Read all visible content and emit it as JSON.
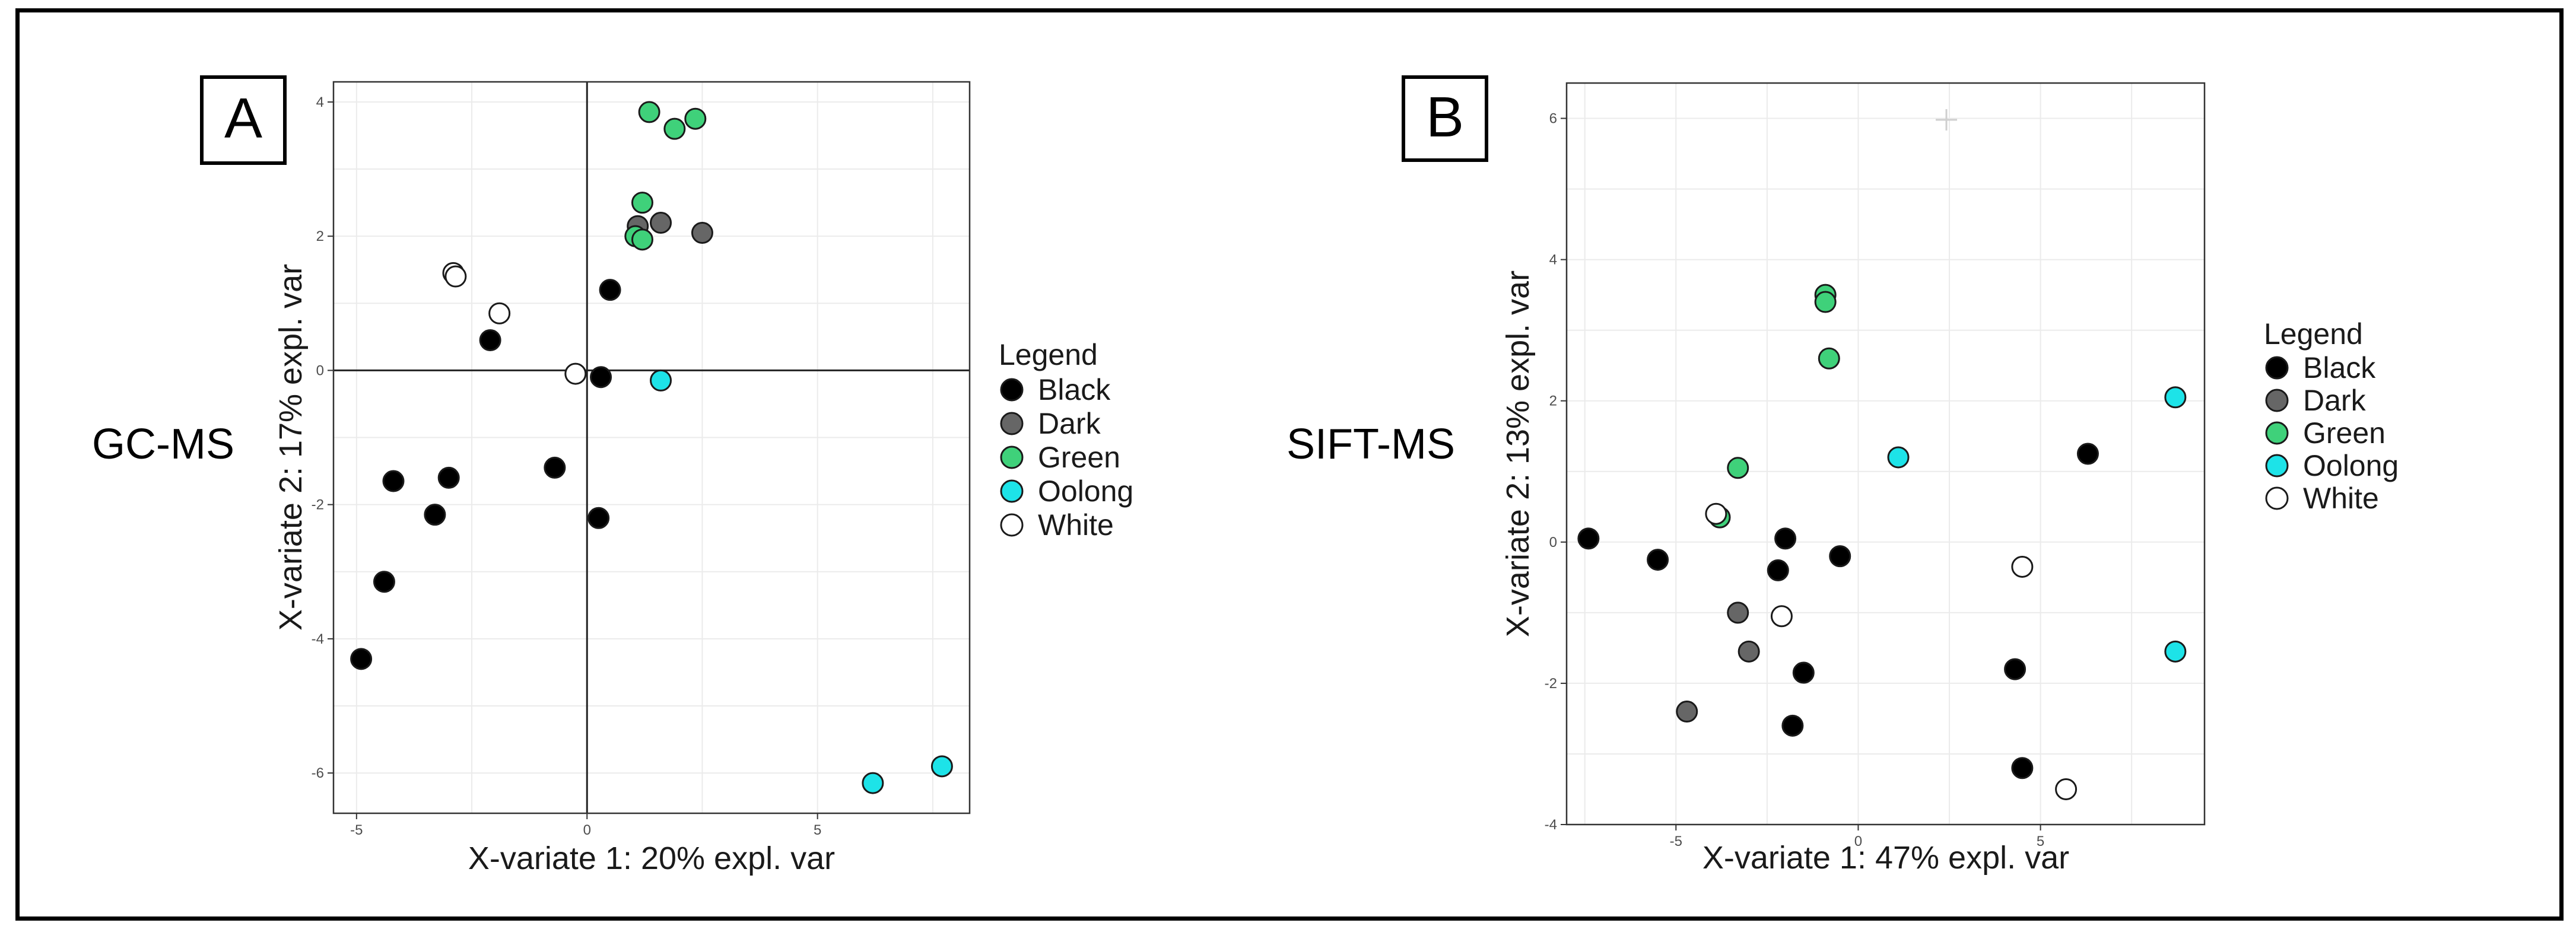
{
  "colors": {
    "Black": "#000000",
    "Dark": "#666666",
    "Green": "#3fd17a",
    "Oolong": "#1de3e8",
    "White": "#ffffff"
  },
  "chart_data": [
    {
      "type": "scatter",
      "panel_letter": "A",
      "method_label": "GC-MS",
      "xlabel": "X-variate 1: 20% expl. var",
      "ylabel": "X-variate 2: 17% expl. var",
      "xlim": [
        -5.5,
        8.3
      ],
      "ylim": [
        -6.6,
        4.3
      ],
      "xticks": [
        -5,
        0,
        5
      ],
      "xtick_labels": [
        "-5",
        "0",
        "5"
      ],
      "yticks": [
        -6,
        -4,
        -2,
        0,
        2,
        4
      ],
      "ytick_labels": [
        "-6",
        "-4",
        "-2",
        "0",
        "2",
        "4"
      ],
      "zero_lines": true,
      "legend": {
        "title": "Legend",
        "entries": [
          "Black",
          "Dark",
          "Green",
          "Oolong",
          "White"
        ]
      },
      "points": [
        {
          "group": "Black",
          "x": -4.9,
          "y": -4.3
        },
        {
          "group": "Black",
          "x": -4.4,
          "y": -3.15
        },
        {
          "group": "Black",
          "x": -4.2,
          "y": -1.65
        },
        {
          "group": "Black",
          "x": -3.3,
          "y": -2.15
        },
        {
          "group": "Black",
          "x": -3.0,
          "y": -1.6
        },
        {
          "group": "Black",
          "x": -2.1,
          "y": 0.45
        },
        {
          "group": "Black",
          "x": -0.7,
          "y": -1.45
        },
        {
          "group": "Black",
          "x": 0.3,
          "y": -0.1
        },
        {
          "group": "Black",
          "x": 0.5,
          "y": 1.2
        },
        {
          "group": "Black",
          "x": 0.25,
          "y": -2.2
        },
        {
          "group": "Dark",
          "x": 1.1,
          "y": 2.15
        },
        {
          "group": "Dark",
          "x": 1.6,
          "y": 2.2
        },
        {
          "group": "Dark",
          "x": 2.5,
          "y": 2.05
        },
        {
          "group": "Green",
          "x": 1.05,
          "y": 2.0
        },
        {
          "group": "Green",
          "x": 1.2,
          "y": 1.95
        },
        {
          "group": "Green",
          "x": 1.2,
          "y": 2.5
        },
        {
          "group": "Green",
          "x": 1.35,
          "y": 3.85
        },
        {
          "group": "Green",
          "x": 1.9,
          "y": 3.6
        },
        {
          "group": "Green",
          "x": 2.35,
          "y": 3.75
        },
        {
          "group": "Oolong",
          "x": 1.6,
          "y": -0.15
        },
        {
          "group": "Oolong",
          "x": 6.2,
          "y": -6.15
        },
        {
          "group": "Oolong",
          "x": 7.7,
          "y": -5.9
        },
        {
          "group": "White",
          "x": -2.9,
          "y": 1.45
        },
        {
          "group": "White",
          "x": -2.85,
          "y": 1.4
        },
        {
          "group": "White",
          "x": -1.9,
          "y": 0.85
        },
        {
          "group": "White",
          "x": -0.25,
          "y": -0.05
        }
      ]
    },
    {
      "type": "scatter",
      "panel_letter": "B",
      "method_label": "SIFT-MS",
      "xlabel": "X-variate 1: 47% expl. var",
      "ylabel": "X-variate 2: 13% expl. var",
      "xlim": [
        -8.0,
        9.5
      ],
      "ylim": [
        -4.0,
        6.5
      ],
      "xticks": [
        -5,
        0,
        5
      ],
      "xtick_labels": [
        "-5",
        "0",
        "5"
      ],
      "yticks": [
        -4,
        -2,
        0,
        2,
        4,
        6
      ],
      "ytick_labels": [
        "-4",
        "-2",
        "0",
        "2",
        "4",
        "6"
      ],
      "zero_lines": false,
      "legend": {
        "title": "Legend",
        "entries": [
          "Black",
          "Dark",
          "Green",
          "Oolong",
          "White"
        ]
      },
      "points": [
        {
          "group": "Black",
          "x": -7.4,
          "y": 0.05
        },
        {
          "group": "Black",
          "x": -5.5,
          "y": -0.25
        },
        {
          "group": "Black",
          "x": -2.0,
          "y": 0.05
        },
        {
          "group": "Black",
          "x": -2.2,
          "y": -0.4
        },
        {
          "group": "Black",
          "x": -0.5,
          "y": -0.2
        },
        {
          "group": "Black",
          "x": -1.5,
          "y": -1.85
        },
        {
          "group": "Black",
          "x": -1.8,
          "y": -2.6
        },
        {
          "group": "Black",
          "x": 4.3,
          "y": -1.8
        },
        {
          "group": "Black",
          "x": 4.5,
          "y": -3.2
        },
        {
          "group": "Black",
          "x": 6.3,
          "y": 1.25
        },
        {
          "group": "Dark",
          "x": -4.7,
          "y": -2.4
        },
        {
          "group": "Dark",
          "x": -3.3,
          "y": -1.0
        },
        {
          "group": "Dark",
          "x": -3.0,
          "y": -1.55
        },
        {
          "group": "Green",
          "x": -0.9,
          "y": 3.5
        },
        {
          "group": "Green",
          "x": -0.9,
          "y": 3.4
        },
        {
          "group": "Green",
          "x": -0.8,
          "y": 2.6
        },
        {
          "group": "Green",
          "x": -3.3,
          "y": 1.05
        },
        {
          "group": "Green",
          "x": -3.8,
          "y": 0.35
        },
        {
          "group": "Oolong",
          "x": 1.1,
          "y": 1.2
        },
        {
          "group": "Oolong",
          "x": 8.7,
          "y": 2.05
        },
        {
          "group": "Oolong",
          "x": 8.7,
          "y": -1.55
        },
        {
          "group": "White",
          "x": -3.9,
          "y": 0.4
        },
        {
          "group": "White",
          "x": -2.1,
          "y": -1.05
        },
        {
          "group": "White",
          "x": 4.5,
          "y": -0.35
        },
        {
          "group": "White",
          "x": 5.7,
          "y": -3.5
        }
      ]
    }
  ]
}
